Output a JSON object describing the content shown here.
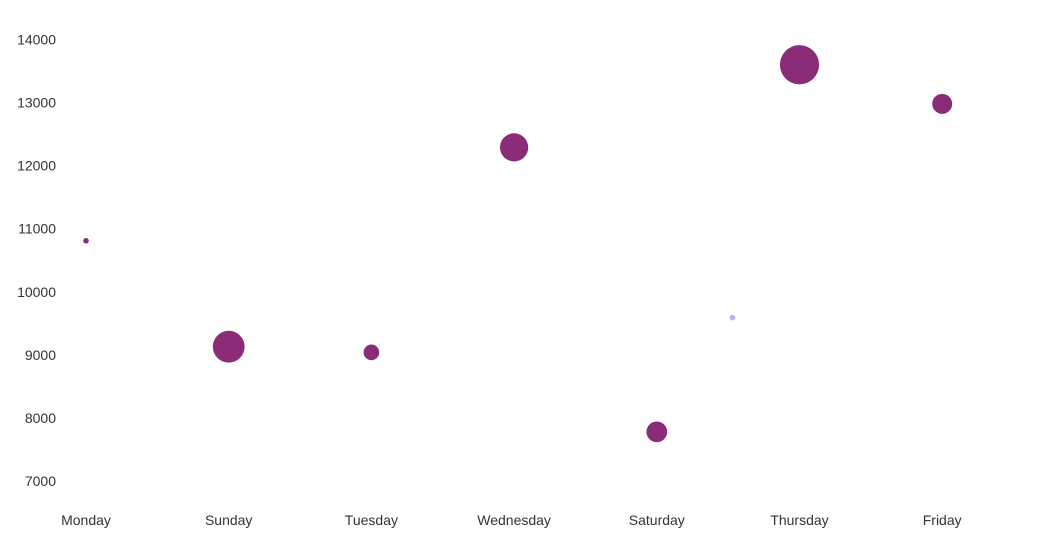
{
  "chart_data": {
    "type": "scatter",
    "categories": [
      "Monday",
      "Sunday",
      "Tuesday",
      "Wednesday",
      "Saturday",
      "Thursday",
      "Friday"
    ],
    "y_ticks": [
      7000,
      8000,
      9000,
      10000,
      11000,
      12000,
      13000,
      14000
    ],
    "ylim": [
      6620,
      14500
    ],
    "grid": false,
    "legend": "none",
    "series": [
      {
        "color": "#8b2c78",
        "points": [
          {
            "category": "Monday",
            "x": 0,
            "y": 10810,
            "size": 1
          },
          {
            "category": "Sunday",
            "x": 1,
            "y": 9130,
            "size": 33
          },
          {
            "category": "Tuesday",
            "x": 2,
            "y": 9040,
            "size": 8
          },
          {
            "category": "Wednesday",
            "x": 3,
            "y": 12290,
            "size": 26
          },
          {
            "category": "Saturday",
            "x": 4,
            "y": 7780,
            "size": 14
          },
          {
            "category": "Thursday",
            "x": 5,
            "y": 13600,
            "size": 50
          },
          {
            "category": "Friday",
            "x": 6,
            "y": 12980,
            "size": 13
          }
        ]
      },
      {
        "color": "#b3b5f2",
        "points": [
          {
            "category": "",
            "x": 4.53,
            "y": 9590,
            "size": 1
          }
        ]
      }
    ]
  }
}
